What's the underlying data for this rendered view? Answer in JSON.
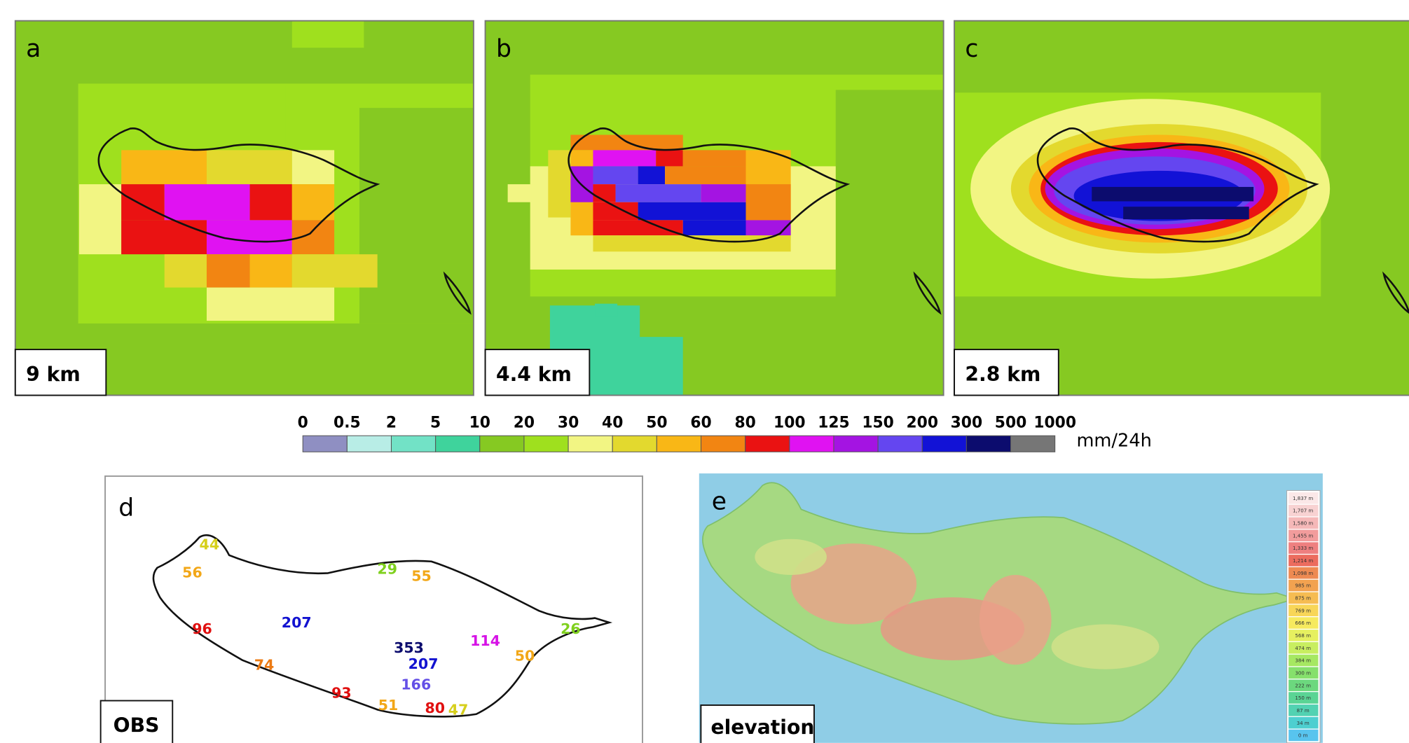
{
  "panels": [
    {
      "label": "a",
      "resolution": "9 km"
    },
    {
      "label": "b",
      "resolution": "4.4 km"
    },
    {
      "label": "c",
      "resolution": "2.8 km"
    }
  ],
  "colorbar": {
    "ticks": [
      0,
      0.5,
      2,
      5,
      10,
      20,
      30,
      40,
      50,
      60,
      80,
      100,
      125,
      150,
      200,
      300,
      500,
      1000
    ],
    "colors": [
      "#8f8fc2",
      "#b8ede6",
      "#72e2c6",
      "#3fd39c",
      "#86c922",
      "#9fe01e",
      "#f2f583",
      "#e3d92e",
      "#f9b716",
      "#f28512",
      "#ea1212",
      "#e012f2",
      "#a414e2",
      "#6446f0",
      "#1212d6",
      "#0c0c6e",
      "#767676"
    ],
    "unit": "mm/24h"
  },
  "obs": {
    "label": "d",
    "name": "OBS",
    "stations": [
      {
        "value": 44,
        "color": "#d6cf1c"
      },
      {
        "value": 56,
        "color": "#f2a718"
      },
      {
        "value": 29,
        "color": "#7fd01e"
      },
      {
        "value": 55,
        "color": "#f2a718"
      },
      {
        "value": 96,
        "color": "#e01010"
      },
      {
        "value": 207,
        "color": "#1212d0"
      },
      {
        "value": 353,
        "color": "#0c0c6e"
      },
      {
        "value": 207,
        "color": "#1212d0"
      },
      {
        "value": 166,
        "color": "#6450e6"
      },
      {
        "value": 114,
        "color": "#d612e6"
      },
      {
        "value": 50,
        "color": "#f2a718"
      },
      {
        "value": 26,
        "color": "#7fd01e"
      },
      {
        "value": 74,
        "color": "#ec7a12"
      },
      {
        "value": 93,
        "color": "#e01010"
      },
      {
        "value": 51,
        "color": "#f2a718"
      },
      {
        "value": 80,
        "color": "#e01010"
      },
      {
        "value": 47,
        "color": "#d6cf1c"
      }
    ]
  },
  "elevation": {
    "label": "e",
    "name": "elevation",
    "legend": [
      {
        "label": "1,837 m",
        "color": "#fbe8e8"
      },
      {
        "label": "1,707 m",
        "color": "#f8d2d2"
      },
      {
        "label": "1,580 m",
        "color": "#f5b8b8"
      },
      {
        "label": "1,455 m",
        "color": "#f29c9c"
      },
      {
        "label": "1,333 m",
        "color": "#ee7f7f"
      },
      {
        "label": "1,214 m",
        "color": "#ec6c5e"
      },
      {
        "label": "1,098 m",
        "color": "#ee8a52"
      },
      {
        "label": "985 m",
        "color": "#f2a250"
      },
      {
        "label": "875 m",
        "color": "#f6bc52"
      },
      {
        "label": "769 m",
        "color": "#f8d658"
      },
      {
        "label": "666 m",
        "color": "#f6ea5e"
      },
      {
        "label": "568 m",
        "color": "#e6f060"
      },
      {
        "label": "474 m",
        "color": "#c8ee60"
      },
      {
        "label": "384 m",
        "color": "#a6e862"
      },
      {
        "label": "300 m",
        "color": "#86e06c"
      },
      {
        "label": "222 m",
        "color": "#6cd87e"
      },
      {
        "label": "150 m",
        "color": "#5ad494"
      },
      {
        "label": "87 m",
        "color": "#52d2b2"
      },
      {
        "label": "34 m",
        "color": "#4ecfd0"
      },
      {
        "label": "0 m",
        "color": "#58c4ee"
      }
    ]
  }
}
